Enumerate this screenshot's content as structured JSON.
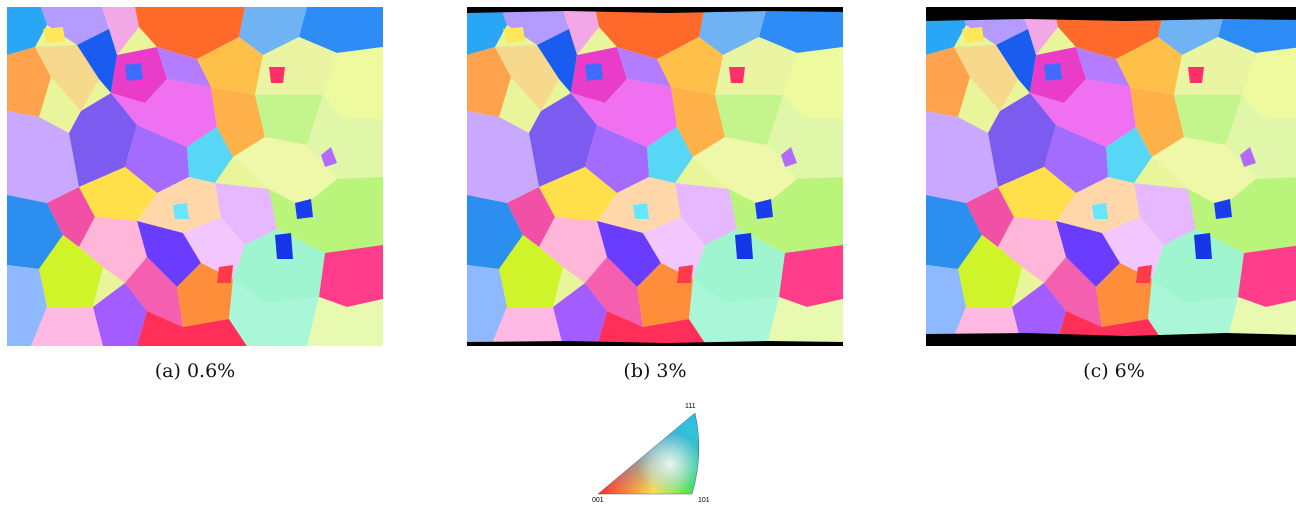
{
  "subfigures": [
    {
      "id": "a",
      "caption": "(a) 0.6%",
      "strain_percent": 0.6
    },
    {
      "id": "b",
      "caption": "(b) 3%",
      "strain_percent": 3
    },
    {
      "id": "c",
      "caption": "(c) 6%",
      "strain_percent": 6
    }
  ],
  "ipf_legend": {
    "top": "111",
    "bottom_left": "001",
    "bottom_right": "101"
  },
  "colors": {
    "001": "#ff2a2a",
    "101": "#2ee83a",
    "111": "#2a3cff",
    "background_mask": "#000000"
  }
}
